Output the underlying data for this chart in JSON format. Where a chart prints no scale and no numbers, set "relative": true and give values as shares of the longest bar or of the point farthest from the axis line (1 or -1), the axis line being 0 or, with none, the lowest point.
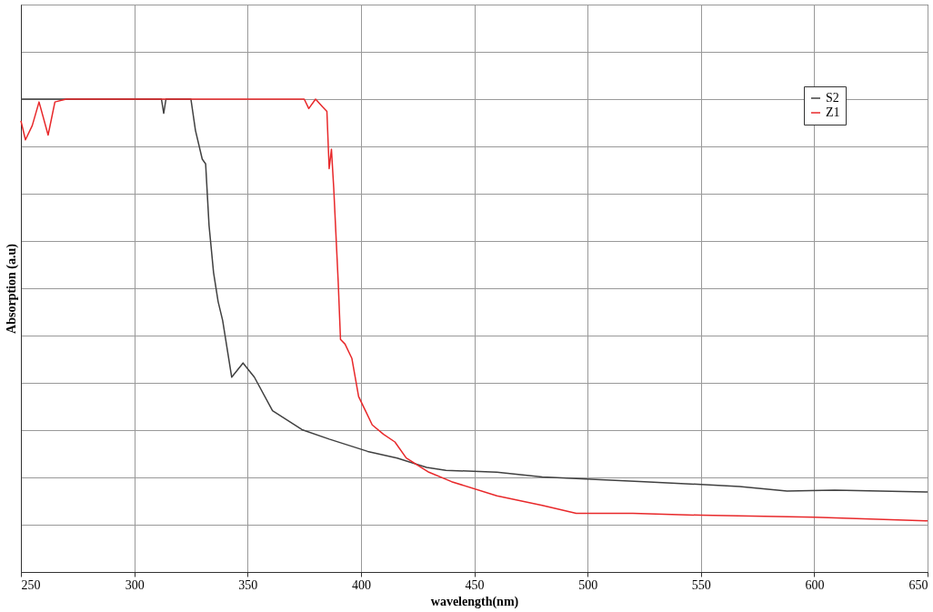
{
  "chart_data": {
    "type": "line",
    "xlabel": "wavelength(nm)",
    "ylabel": "Absorption (a.u)",
    "relative": true,
    "xlim": [
      250,
      650
    ],
    "xticks": [
      250,
      300,
      350,
      400,
      450,
      500,
      550,
      600,
      650
    ],
    "grid": true,
    "legend": "top right",
    "line_style": "solid",
    "marker": "none",
    "series": [
      {
        "name": "S2",
        "color": "#404040",
        "x": [
          250,
          300,
          312,
          313,
          314,
          325,
          327,
          330,
          331.5,
          333,
          335,
          337,
          339,
          343,
          348,
          353,
          361,
          374,
          386,
          403,
          416,
          429,
          437.5,
          460,
          480,
          525,
          567,
          588,
          609,
          650
        ],
        "values": [
          1,
          1,
          1,
          0.97,
          1,
          1,
          0.934,
          0.873,
          0.863,
          0.733,
          0.633,
          0.572,
          0.532,
          0.412,
          0.442,
          0.412,
          0.341,
          0.301,
          0.281,
          0.255,
          0.241,
          0.221,
          0.215,
          0.211,
          0.201,
          0.191,
          0.181,
          0.171,
          0.173,
          0.169
        ]
      },
      {
        "name": "Z1",
        "color": "#e8282a",
        "x": [
          250,
          252,
          255,
          258,
          262,
          265,
          270,
          375,
          377,
          380,
          383,
          385,
          386,
          387,
          388,
          390,
          391,
          393,
          396,
          399,
          402,
          405,
          410,
          415,
          420,
          430,
          440,
          460,
          480,
          495,
          520,
          550,
          600,
          650
        ],
        "values": [
          0.954,
          0.914,
          0.944,
          0.994,
          0.924,
          0.994,
          1,
          1,
          0.98,
          1,
          0.984,
          0.974,
          0.853,
          0.894,
          0.813,
          0.612,
          0.492,
          0.482,
          0.452,
          0.371,
          0.341,
          0.311,
          0.291,
          0.275,
          0.241,
          0.211,
          0.191,
          0.161,
          0.141,
          0.124,
          0.124,
          0.12,
          0.116,
          0.108
        ]
      }
    ]
  }
}
